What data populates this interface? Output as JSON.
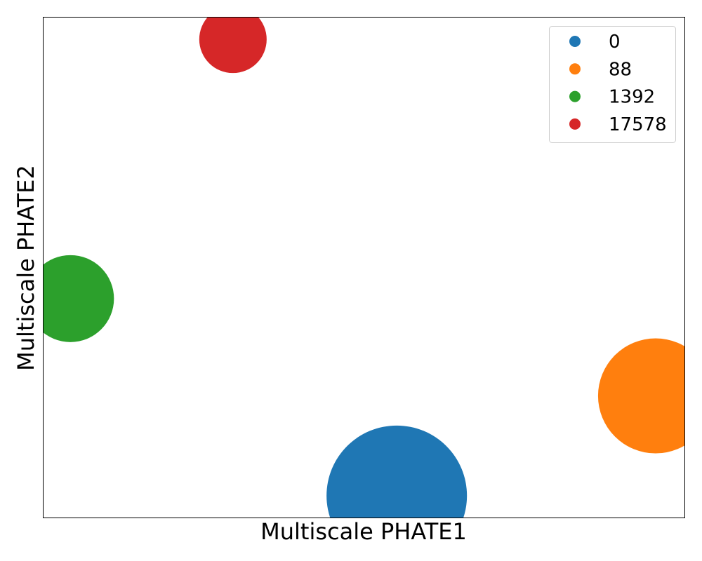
{
  "chart_data": {
    "type": "scatter",
    "title": "",
    "xlabel": "Multiscale PHATE1",
    "ylabel": "Multiscale PHATE2",
    "xticks": [],
    "yticks": [],
    "xlim": [
      0,
      100
    ],
    "ylim": [
      0,
      100
    ],
    "grid": false,
    "legend_position": "top-right",
    "series": [
      {
        "name": "0",
        "color": "#1f77b4",
        "x": 55.1,
        "y": 4.5,
        "size": 100
      },
      {
        "name": "88",
        "color": "#ff7f0e",
        "x": 95.4,
        "y": 24.4,
        "size": 82
      },
      {
        "name": "1392",
        "color": "#2ca02c",
        "x": 4.3,
        "y": 43.8,
        "size": 62
      },
      {
        "name": "17578",
        "color": "#d62728",
        "x": 29.6,
        "y": 95.5,
        "size": 48
      }
    ]
  }
}
